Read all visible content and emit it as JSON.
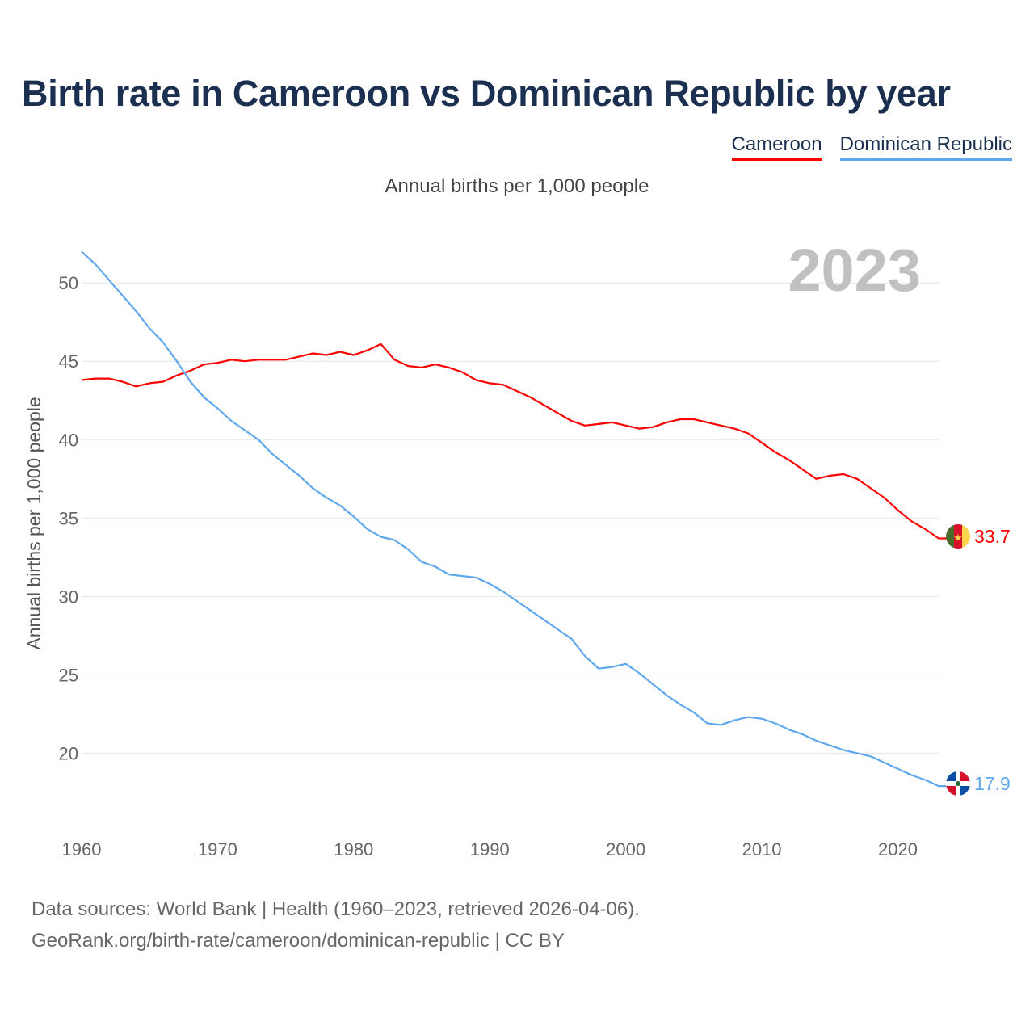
{
  "title": "Birth rate in Cameroon vs Dominican Republic by year",
  "subtitle": "Annual births per 1,000 people",
  "footer": {
    "line1": "Data sources: World Bank | Health (1960–2023, retrieved 2026-04-06).",
    "line2": "GeoRank.org/birth-rate/cameroon/dominican-republic | CC BY"
  },
  "chart_data": {
    "type": "line",
    "title": "Birth rate in Cameroon vs Dominican Republic by year",
    "ylabel": "Annual births per 1,000 people",
    "xlabel": "",
    "year_label": "2023",
    "xlim": [
      1960,
      2023
    ],
    "ylim": [
      16,
      53
    ],
    "x_ticks": [
      1960,
      1970,
      1980,
      1990,
      2000,
      2010,
      2020
    ],
    "y_ticks": [
      20,
      25,
      30,
      35,
      40,
      45,
      50
    ],
    "grid": true,
    "legend_position": "top-right",
    "x_start": 1960,
    "series": [
      {
        "name": "Cameroon",
        "color": "#ff0000",
        "end_label": "33.7",
        "flag": "cameroon-flag",
        "values": [
          43.8,
          43.9,
          43.9,
          43.7,
          43.4,
          43.6,
          43.7,
          44.1,
          44.4,
          44.8,
          44.9,
          45.1,
          45.0,
          45.1,
          45.1,
          45.1,
          45.3,
          45.5,
          45.4,
          45.6,
          45.4,
          45.7,
          46.1,
          45.1,
          44.7,
          44.6,
          44.8,
          44.6,
          44.3,
          43.8,
          43.6,
          43.5,
          43.1,
          42.7,
          42.2,
          41.7,
          41.2,
          40.9,
          41.0,
          41.1,
          40.9,
          40.7,
          40.8,
          41.1,
          41.3,
          41.3,
          41.1,
          40.9,
          40.7,
          40.4,
          39.8,
          39.2,
          38.7,
          38.1,
          37.5,
          37.7,
          37.8,
          37.5,
          36.9,
          36.3,
          35.5,
          34.8,
          34.3,
          33.7
        ]
      },
      {
        "name": "Dominican Republic",
        "color": "#5fa8ee",
        "end_label": "17.9",
        "flag": "dominican-republic-flag",
        "values": [
          52.0,
          51.2,
          50.2,
          49.2,
          48.2,
          47.1,
          46.2,
          45.0,
          43.7,
          42.7,
          42.0,
          41.2,
          40.6,
          40.0,
          39.1,
          38.4,
          37.7,
          36.9,
          36.3,
          35.8,
          35.1,
          34.3,
          33.8,
          33.6,
          33.0,
          32.2,
          31.9,
          31.4,
          31.3,
          31.2,
          30.8,
          30.3,
          29.7,
          29.1,
          28.5,
          27.9,
          27.3,
          26.2,
          25.4,
          25.5,
          25.7,
          25.1,
          24.4,
          23.7,
          23.1,
          22.6,
          21.9,
          21.8,
          22.1,
          22.3,
          22.2,
          21.9,
          21.5,
          21.2,
          20.8,
          20.5,
          20.2,
          20.0,
          19.8,
          19.4,
          19.0,
          18.6,
          18.3,
          17.9
        ]
      }
    ]
  }
}
